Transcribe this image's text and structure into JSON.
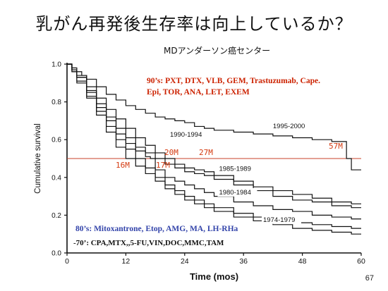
{
  "slide": {
    "title": "乳がん再発後生存率は向上しているか？",
    "subtitle": "MDアンダーソン癌センター",
    "page_number": "67"
  },
  "annotations": {
    "nineties_line1": "90’s: PXT, DTX, VLB, GEM, Trastuzumab, Cape.",
    "nineties_line2": "Epi, TOR, ANA, LET, EXEM",
    "eighties": "80’s: Mitoxantrone, Etop, AMG, MA, LH-RHa",
    "seventies": "-70’: CPA,MTX,,5-FU,VIN,DOC,MMC,TAM"
  },
  "median_labels": {
    "m57": "57M",
    "m20": "20M",
    "m27": "27M",
    "m16": "16M",
    "m17": "17M"
  },
  "colors": {
    "axis": "#111111",
    "curve": "#111111",
    "median_line": "#c8402a",
    "red_text": "#cc2200",
    "blue_text": "#3344aa"
  },
  "chart_data": {
    "type": "line",
    "xlabel": "Time (mos)",
    "ylabel": "Cumulative survival",
    "xlim": [
      0,
      60
    ],
    "ylim": [
      0,
      1.0
    ],
    "xticks": [
      0,
      12,
      24,
      36,
      48,
      60
    ],
    "yticks": [
      0.0,
      0.2,
      0.4,
      0.6,
      0.8,
      1.0
    ],
    "ytick_labels": [
      "0.0",
      "0.2",
      "0.4",
      "0.6",
      "0.8",
      "1.0"
    ],
    "median_reference_y": 0.5,
    "series": [
      {
        "name": "1995-2000",
        "x": [
          0,
          1,
          2,
          3,
          4,
          6,
          8,
          10,
          12,
          14,
          16,
          18,
          20,
          22,
          24,
          26,
          28,
          30,
          34,
          38,
          42,
          46,
          50,
          54,
          57,
          58,
          60
        ],
        "y": [
          1.0,
          0.98,
          0.96,
          0.94,
          0.92,
          0.88,
          0.84,
          0.81,
          0.78,
          0.76,
          0.74,
          0.72,
          0.71,
          0.7,
          0.69,
          0.67,
          0.66,
          0.65,
          0.64,
          0.63,
          0.62,
          0.61,
          0.6,
          0.59,
          0.5,
          0.44,
          0.44
        ]
      },
      {
        "name": "1990-1994",
        "x": [
          0,
          1,
          2,
          4,
          6,
          8,
          10,
          12,
          14,
          16,
          18,
          20,
          22,
          24,
          26,
          28,
          30,
          34,
          38,
          42,
          46,
          50,
          54,
          58,
          60
        ],
        "y": [
          1.0,
          0.97,
          0.94,
          0.88,
          0.82,
          0.76,
          0.71,
          0.66,
          0.61,
          0.57,
          0.53,
          0.5,
          0.47,
          0.45,
          0.44,
          0.43,
          0.41,
          0.38,
          0.35,
          0.33,
          0.31,
          0.29,
          0.27,
          0.26,
          0.26
        ]
      },
      {
        "name": "1985-1989",
        "x": [
          0,
          1,
          2,
          4,
          6,
          8,
          10,
          12,
          14,
          16,
          18,
          20,
          22,
          24,
          26,
          28,
          30,
          34,
          38,
          42,
          46,
          50,
          54,
          58,
          60
        ],
        "y": [
          1.0,
          0.97,
          0.93,
          0.86,
          0.79,
          0.72,
          0.66,
          0.61,
          0.56,
          0.53,
          0.5,
          0.47,
          0.45,
          0.43,
          0.42,
          0.41,
          0.39,
          0.36,
          0.33,
          0.3,
          0.28,
          0.27,
          0.25,
          0.24,
          0.24
        ]
      },
      {
        "name": "1980-1984",
        "x": [
          0,
          1,
          2,
          4,
          6,
          8,
          10,
          12,
          14,
          16,
          17,
          18,
          20,
          22,
          24,
          26,
          28,
          30,
          34,
          38,
          42,
          46,
          50,
          54,
          58,
          60
        ],
        "y": [
          1.0,
          0.97,
          0.93,
          0.85,
          0.77,
          0.7,
          0.63,
          0.58,
          0.54,
          0.51,
          0.5,
          0.44,
          0.4,
          0.38,
          0.36,
          0.34,
          0.32,
          0.3,
          0.27,
          0.25,
          0.23,
          0.22,
          0.2,
          0.19,
          0.18,
          0.18
        ]
      },
      {
        "name": "1974-1979",
        "x": [
          0,
          1,
          2,
          4,
          6,
          8,
          10,
          12,
          14,
          16,
          18,
          20,
          22,
          24,
          26,
          28,
          30,
          34,
          38,
          42,
          46,
          50,
          54,
          58,
          60
        ],
        "y": [
          1.0,
          0.96,
          0.91,
          0.83,
          0.75,
          0.67,
          0.6,
          0.55,
          0.5,
          0.45,
          0.4,
          0.36,
          0.33,
          0.3,
          0.28,
          0.26,
          0.24,
          0.21,
          0.19,
          0.17,
          0.16,
          0.15,
          0.14,
          0.13,
          0.13
        ]
      },
      {
        "name": "",
        "x": [
          0,
          1,
          2,
          4,
          6,
          8,
          10,
          12,
          14,
          16,
          18,
          20,
          22,
          24,
          26,
          28,
          30,
          34,
          38,
          42,
          46,
          50,
          54,
          58,
          60
        ],
        "y": [
          1.0,
          0.96,
          0.9,
          0.82,
          0.73,
          0.64,
          0.56,
          0.5,
          0.46,
          0.42,
          0.38,
          0.34,
          0.31,
          0.28,
          0.26,
          0.24,
          0.22,
          0.19,
          0.17,
          0.15,
          0.13,
          0.12,
          0.11,
          0.1,
          0.1
        ]
      }
    ],
    "series_label_positions": {
      "1995-2000": [
        42,
        0.66
      ],
      "1990-1994": [
        21,
        0.615
      ],
      "1985-1989": [
        31,
        0.435
      ],
      "1980-1984": [
        31,
        0.31
      ],
      "1974-1979": [
        40,
        0.165
      ]
    }
  }
}
